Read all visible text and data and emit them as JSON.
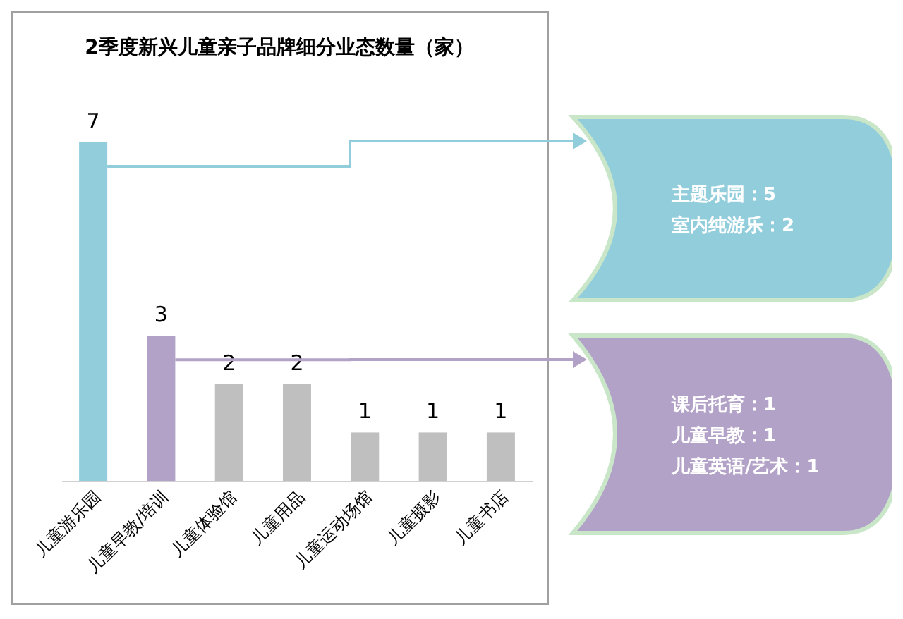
{
  "chart_data": {
    "type": "bar",
    "title": "2季度新兴儿童亲子品牌细分业态数量（家）",
    "categories": [
      "儿童游乐园",
      "儿童早教/培训",
      "儿童体验馆",
      "儿童用品",
      "儿童运动场馆",
      "儿童摄影",
      "儿童书店"
    ],
    "values": [
      7,
      3,
      2,
      2,
      1,
      1,
      1
    ],
    "colors": [
      "#92cddc",
      "#b3a2c7",
      "#bfbfbf",
      "#bfbfbf",
      "#bfbfbf",
      "#bfbfbf",
      "#bfbfbf"
    ],
    "data_labels": true,
    "annotations": [
      "主题乐园：5\n室内纯游乐：2",
      "课后托育：1\n儿童早教：1\n儿童英语/艺术：1"
    ]
  }
}
